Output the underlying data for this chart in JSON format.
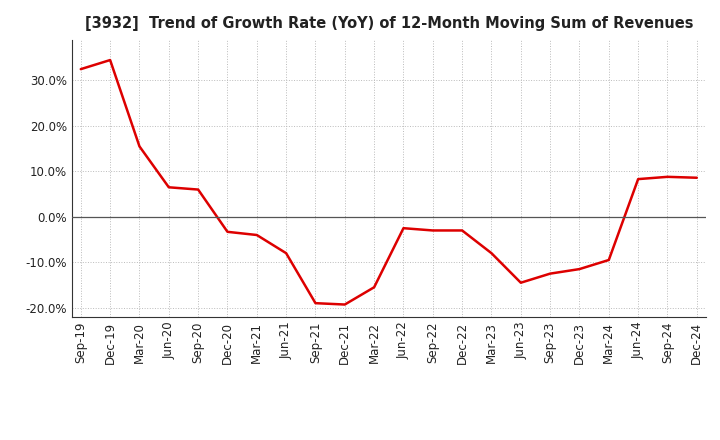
{
  "title": "[3932]  Trend of Growth Rate (YoY) of 12-Month Moving Sum of Revenues",
  "line_color": "#dd0000",
  "line_width": 1.8,
  "background_color": "#ffffff",
  "grid_color": "#bbbbbb",
  "ylim": [
    -0.22,
    0.39
  ],
  "yticks": [
    -0.2,
    -0.1,
    0.0,
    0.1,
    0.2,
    0.3
  ],
  "x_labels": [
    "Sep-19",
    "Dec-19",
    "Mar-20",
    "Jun-20",
    "Sep-20",
    "Dec-20",
    "Mar-21",
    "Jun-21",
    "Sep-21",
    "Dec-21",
    "Mar-22",
    "Jun-22",
    "Sep-22",
    "Dec-22",
    "Mar-23",
    "Jun-23",
    "Sep-23",
    "Dec-23",
    "Mar-24",
    "Jun-24",
    "Sep-24",
    "Dec-24"
  ],
  "data": {
    "Sep-19": 0.325,
    "Dec-19": 0.345,
    "Mar-20": 0.155,
    "Jun-20": 0.065,
    "Sep-20": 0.06,
    "Dec-20": -0.033,
    "Mar-21": -0.04,
    "Jun-21": -0.08,
    "Sep-21": -0.19,
    "Dec-21": -0.193,
    "Mar-22": -0.155,
    "Jun-22": -0.025,
    "Sep-22": -0.03,
    "Dec-22": -0.03,
    "Mar-23": -0.08,
    "Jun-23": -0.145,
    "Sep-23": -0.125,
    "Dec-23": -0.115,
    "Mar-24": -0.095,
    "Jun-24": 0.083,
    "Sep-24": 0.088,
    "Dec-24": 0.086
  }
}
